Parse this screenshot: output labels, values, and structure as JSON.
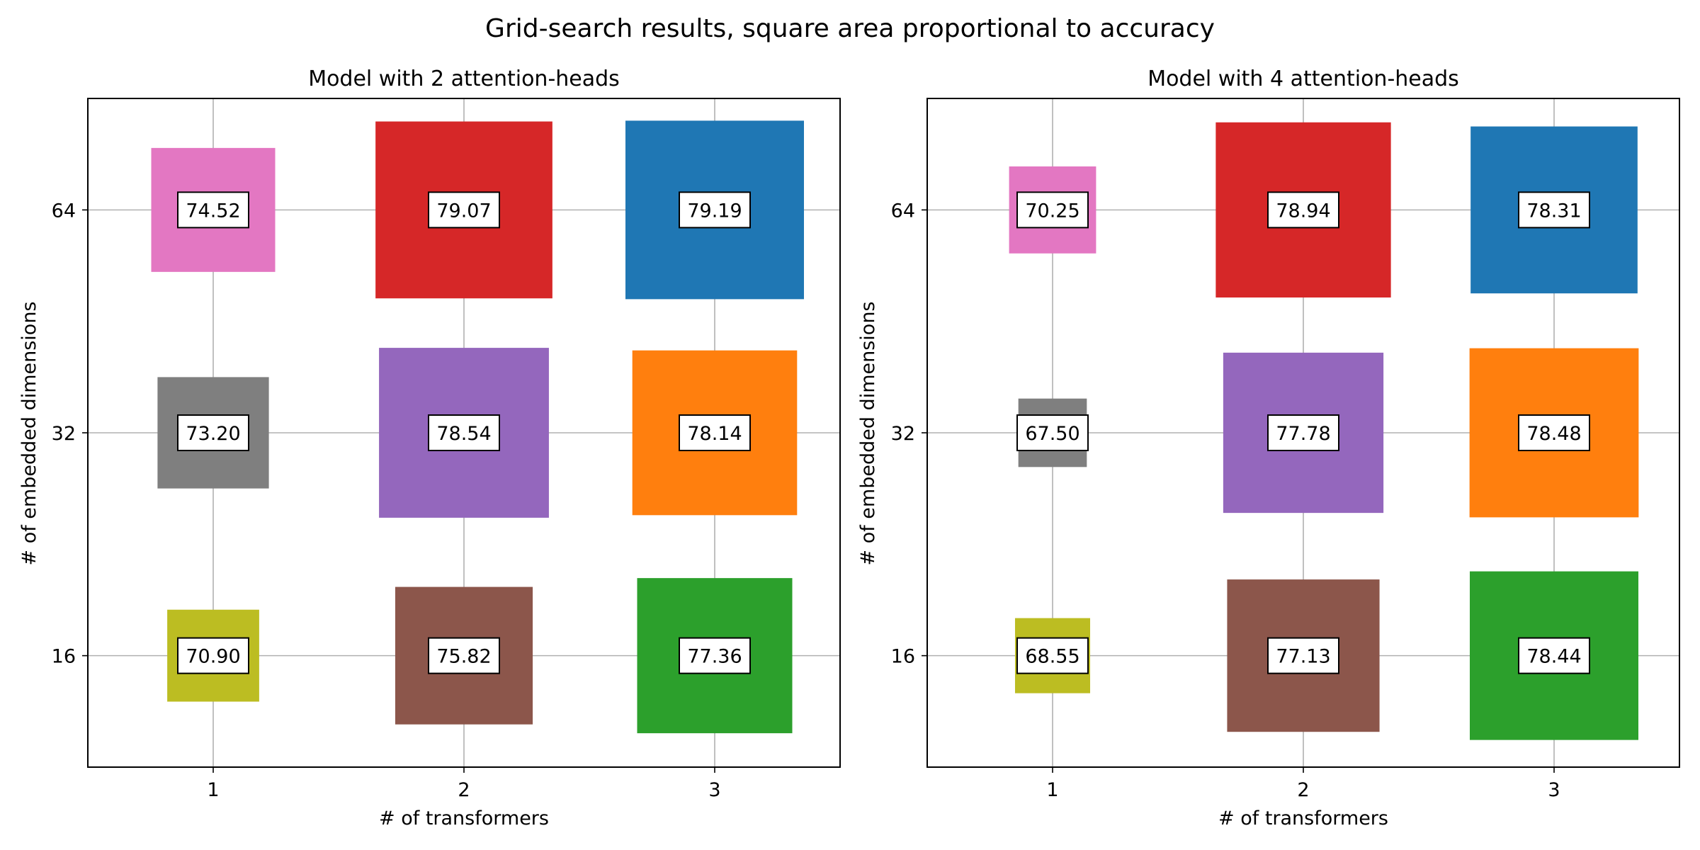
{
  "figure": {
    "title": "Grid-search results, square area proportional to accuracy"
  },
  "chart_data": [
    {
      "type": "scatter",
      "title": "Model with 2 attention-heads",
      "xlabel": "# of transformers",
      "ylabel": "# of embedded dimensions",
      "x_ticks": [
        "1",
        "2",
        "3"
      ],
      "y_ticks": [
        "16",
        "32",
        "64"
      ],
      "grid": true,
      "points": [
        {
          "x": "1",
          "y": "64",
          "value": 74.52,
          "label": "74.52",
          "color": "#e377c2"
        },
        {
          "x": "2",
          "y": "64",
          "value": 79.07,
          "label": "79.07",
          "color": "#d62728"
        },
        {
          "x": "3",
          "y": "64",
          "value": 79.19,
          "label": "79.19",
          "color": "#1f77b4"
        },
        {
          "x": "1",
          "y": "32",
          "value": 73.2,
          "label": "73.20",
          "color": "#7f7f7f"
        },
        {
          "x": "2",
          "y": "32",
          "value": 78.54,
          "label": "78.54",
          "color": "#9467bd"
        },
        {
          "x": "3",
          "y": "32",
          "value": 78.14,
          "label": "78.14",
          "color": "#ff7f0e"
        },
        {
          "x": "1",
          "y": "16",
          "value": 70.9,
          "label": "70.90",
          "color": "#bcbd22"
        },
        {
          "x": "2",
          "y": "16",
          "value": 75.82,
          "label": "75.82",
          "color": "#8c564b"
        },
        {
          "x": "3",
          "y": "16",
          "value": 77.36,
          "label": "77.36",
          "color": "#2ca02c"
        }
      ]
    },
    {
      "type": "scatter",
      "title": "Model with 4 attention-heads",
      "xlabel": "# of transformers",
      "ylabel": "# of embedded dimensions",
      "x_ticks": [
        "1",
        "2",
        "3"
      ],
      "y_ticks": [
        "16",
        "32",
        "64"
      ],
      "grid": true,
      "points": [
        {
          "x": "1",
          "y": "64",
          "value": 70.25,
          "label": "70.25",
          "color": "#e377c2"
        },
        {
          "x": "2",
          "y": "64",
          "value": 78.94,
          "label": "78.94",
          "color": "#d62728"
        },
        {
          "x": "3",
          "y": "64",
          "value": 78.31,
          "label": "78.31",
          "color": "#1f77b4"
        },
        {
          "x": "1",
          "y": "32",
          "value": 67.5,
          "label": "67.50",
          "color": "#7f7f7f"
        },
        {
          "x": "2",
          "y": "32",
          "value": 77.78,
          "label": "77.78",
          "color": "#9467bd"
        },
        {
          "x": "3",
          "y": "32",
          "value": 78.48,
          "label": "78.48",
          "color": "#ff7f0e"
        },
        {
          "x": "1",
          "y": "16",
          "value": 68.55,
          "label": "68.55",
          "color": "#bcbd22"
        },
        {
          "x": "2",
          "y": "16",
          "value": 77.13,
          "label": "77.13",
          "color": "#8c564b"
        },
        {
          "x": "3",
          "y": "16",
          "value": 78.44,
          "label": "78.44",
          "color": "#2ca02c"
        }
      ]
    }
  ]
}
